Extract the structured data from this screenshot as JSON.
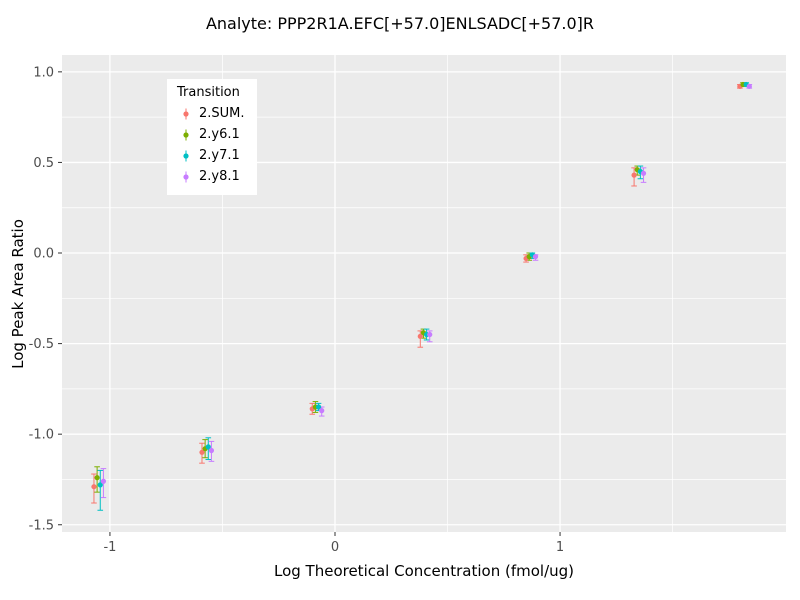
{
  "title": "Analyte: PPP2R1A.EFC[+57.0]ENLSADC[+57.0]R",
  "chart_data": {
    "type": "scatter",
    "title": "Analyte: PPP2R1A.EFC[+57.0]ENLSADC[+57.0]R",
    "xlabel": "Log Theoretical Concentration (fmol/ug)",
    "ylabel": "Log Peak Area Ratio",
    "legend_title": "Transition",
    "legend_position": "inside-top-left",
    "grid": "on",
    "panel_bg": "#EBEBEB",
    "grid_color": "#FFFFFF",
    "tick_text_color": "#4D4D4D",
    "tick_mark_color": "#333333",
    "xlim": [
      -1.213,
      2.004
    ],
    "ylim": [
      -1.54,
      1.093
    ],
    "x_ticks": [
      -1,
      0,
      1
    ],
    "x_tick_labels": [
      "-1",
      "0",
      "1"
    ],
    "y_ticks": [
      1.0,
      0.5,
      0.0,
      -0.5,
      -1.0,
      -1.5
    ],
    "y_tick_labels": [
      "1.0",
      "0.5",
      "0.0",
      "-0.5",
      "-1.0",
      "-1.5"
    ],
    "dodge": [
      -0.021,
      -0.007,
      0.007,
      0.021
    ],
    "series": [
      {
        "name": "2.SUM.",
        "color": "#F8766D",
        "points": [
          [
            -1.05,
            -1.29,
            -1.38,
            -1.22
          ],
          [
            -0.57,
            -1.1,
            -1.16,
            -1.05
          ],
          [
            -0.08,
            -0.86,
            -0.89,
            -0.83
          ],
          [
            0.4,
            -0.46,
            -0.52,
            -0.43
          ],
          [
            0.87,
            -0.03,
            -0.05,
            -0.01
          ],
          [
            1.35,
            0.43,
            0.37,
            0.47
          ],
          [
            1.82,
            0.92,
            0.91,
            0.93
          ]
        ]
      },
      {
        "name": "2.y6.1",
        "color": "#7CAE00",
        "points": [
          [
            -1.05,
            -1.24,
            -1.32,
            -1.18
          ],
          [
            -0.57,
            -1.08,
            -1.13,
            -1.03
          ],
          [
            -0.08,
            -0.85,
            -0.88,
            -0.82
          ],
          [
            0.4,
            -0.44,
            -0.47,
            -0.42
          ],
          [
            0.87,
            -0.02,
            -0.04,
            0.0
          ],
          [
            1.35,
            0.46,
            0.43,
            0.48
          ],
          [
            1.82,
            0.93,
            0.92,
            0.94
          ]
        ]
      },
      {
        "name": "2.y7.1",
        "color": "#00BFC4",
        "points": [
          [
            -1.05,
            -1.28,
            -1.42,
            -1.2
          ],
          [
            -0.57,
            -1.07,
            -1.14,
            -1.02
          ],
          [
            -0.08,
            -0.85,
            -0.87,
            -0.83
          ],
          [
            0.4,
            -0.45,
            -0.48,
            -0.42
          ],
          [
            0.87,
            -0.01,
            -0.03,
            0.0
          ],
          [
            1.35,
            0.45,
            0.41,
            0.48
          ],
          [
            1.82,
            0.93,
            0.92,
            0.94
          ]
        ]
      },
      {
        "name": "2.y8.1",
        "color": "#C77CFF",
        "points": [
          [
            -1.05,
            -1.26,
            -1.35,
            -1.19
          ],
          [
            -0.57,
            -1.09,
            -1.15,
            -1.04
          ],
          [
            -0.08,
            -0.87,
            -0.9,
            -0.85
          ],
          [
            0.4,
            -0.45,
            -0.49,
            -0.43
          ],
          [
            0.87,
            -0.02,
            -0.04,
            -0.01
          ],
          [
            1.35,
            0.44,
            0.39,
            0.47
          ],
          [
            1.82,
            0.92,
            0.91,
            0.93
          ]
        ]
      }
    ]
  }
}
